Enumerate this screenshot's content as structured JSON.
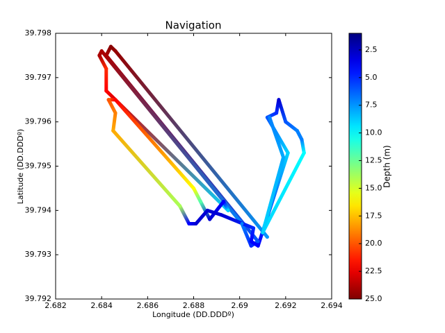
{
  "chart_data": {
    "type": "scatter",
    "title": "Navigation",
    "xlabel": "Longitude (DD.DDDº)",
    "ylabel": "Latitude  (DD.DDDº)",
    "colorbar_label": "Depth (m)",
    "colormap": "jet",
    "x": [
      2.6912,
      2.6846,
      2.6844,
      2.6842,
      2.6908,
      2.6905,
      2.6901,
      2.684,
      2.6839,
      2.6842,
      2.6842,
      2.6846,
      2.6895,
      2.6893,
      2.6887,
      2.6883,
      2.688,
      2.6846,
      2.6843,
      2.6846,
      2.6845,
      2.6874,
      2.6878,
      2.6881,
      2.6886,
      2.6892,
      2.6906,
      2.6905,
      2.6908,
      2.6921,
      2.6912,
      2.6916,
      2.6917,
      2.692,
      2.6925,
      2.6927,
      2.6928,
      2.691,
      2.6919,
      2.6913
    ],
    "y": [
      39.7934,
      39.7976,
      39.7977,
      39.7975,
      39.7933,
      39.7932,
      39.7937,
      39.7976,
      39.7975,
      39.7972,
      39.7967,
      39.7965,
      39.794,
      39.7942,
      39.7938,
      39.7942,
      39.7945,
      39.7965,
      39.7965,
      39.7962,
      39.7958,
      39.7941,
      39.7937,
      39.7937,
      39.794,
      39.7939,
      39.7936,
      39.7933,
      39.7932,
      39.7953,
      39.7961,
      39.7962,
      39.7965,
      39.796,
      39.7958,
      39.7956,
      39.7953,
      39.7935,
      39.7952,
      39.7961
    ],
    "depth": [
      7.5,
      24.5,
      24.8,
      24,
      6,
      5,
      7,
      24,
      24,
      21,
      22,
      23,
      9,
      4,
      3,
      12,
      16,
      22,
      20,
      19,
      18,
      14,
      4,
      3,
      3,
      3,
      5,
      4,
      4,
      9,
      6,
      5,
      3,
      6,
      7,
      7,
      10,
      9,
      8,
      7
    ],
    "xlim": [
      2.682,
      2.694
    ],
    "xticks": [
      2.682,
      2.684,
      2.686,
      2.688,
      2.69,
      2.692,
      2.694
    ],
    "ylim": [
      39.792,
      39.798
    ],
    "yticks": [
      39.792,
      39.793,
      39.794,
      39.795,
      39.796,
      39.797,
      39.798
    ],
    "clim": [
      1,
      25
    ],
    "cticks": [
      2.5,
      {
        "value": 5,
        "label": "5.0"
      },
      7.5,
      {
        "value": 10,
        "label": "10.0"
      },
      12.5,
      {
        "value": 15,
        "label": "15.0"
      },
      17.5,
      {
        "value": 20,
        "label": "20.0"
      },
      22.5,
      {
        "value": 25,
        "label": "25.0"
      }
    ]
  }
}
